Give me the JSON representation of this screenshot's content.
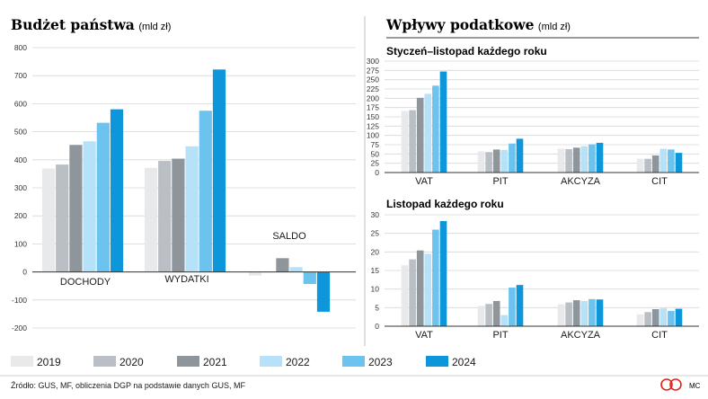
{
  "colors": [
    "#e8e9ea",
    "#b9bfc4",
    "#8f969b",
    "#b5e2f8",
    "#6cc3ee",
    "#0e96db"
  ],
  "legend": [
    "2019",
    "2020",
    "2021",
    "2022",
    "2023",
    "2024"
  ],
  "source": "Źródło: GUS, MF, obliczenia DGP na podstawie danych GUS, MF",
  "credit": "MC",
  "logo_text": "cp",
  "chart_data": [
    {
      "type": "bar",
      "title": "Budżet państwa",
      "unit": "(mld zł)",
      "categories": [
        "DOCHODY",
        "WYDATKI",
        "SALDO"
      ],
      "ylim": [
        -200,
        800
      ],
      "yticks": [
        -200,
        -100,
        0,
        100,
        200,
        300,
        400,
        500,
        600,
        700,
        800
      ],
      "series": [
        {
          "name": "2019",
          "values": [
            369,
            371,
            -13
          ]
        },
        {
          "name": "2020",
          "values": [
            383,
            396,
            1
          ]
        },
        {
          "name": "2021",
          "values": [
            453,
            404,
            49
          ]
        },
        {
          "name": "2022",
          "values": [
            466,
            448,
            17
          ]
        },
        {
          "name": "2023",
          "values": [
            532,
            575,
            -43
          ]
        },
        {
          "name": "2024",
          "values": [
            580,
            722,
            -142
          ]
        }
      ]
    },
    {
      "type": "bar",
      "title": "Wpływy podatkowe",
      "unit": "(mld zł)",
      "subtitle": "Styczeń–listopad każdego roku",
      "categories": [
        "VAT",
        "PIT",
        "AKCYZA",
        "CIT"
      ],
      "ylim": [
        0,
        300
      ],
      "yticks": [
        0,
        25,
        50,
        75,
        100,
        125,
        150,
        175,
        200,
        225,
        250,
        275,
        300
      ],
      "series": [
        {
          "name": "2019",
          "values": [
            166,
            57,
            64,
            37
          ]
        },
        {
          "name": "2020",
          "values": [
            168,
            55,
            63,
            37
          ]
        },
        {
          "name": "2021",
          "values": [
            201,
            62,
            67,
            46
          ]
        },
        {
          "name": "2022",
          "values": [
            212,
            61,
            71,
            64
          ]
        },
        {
          "name": "2023",
          "values": [
            234,
            78,
            76,
            62
          ]
        },
        {
          "name": "2024",
          "values": [
            272,
            91,
            80,
            53
          ]
        }
      ]
    },
    {
      "type": "bar",
      "subtitle": "Listopad każdego roku",
      "categories": [
        "VAT",
        "PIT",
        "AKCYZA",
        "CIT"
      ],
      "ylim": [
        0,
        30
      ],
      "yticks": [
        0,
        5,
        10,
        15,
        20,
        25,
        30
      ],
      "series": [
        {
          "name": "2019",
          "values": [
            16.4,
            5.5,
            5.9,
            3.2
          ]
        },
        {
          "name": "2020",
          "values": [
            18.0,
            6.0,
            6.4,
            3.8
          ]
        },
        {
          "name": "2021",
          "values": [
            20.4,
            6.8,
            7.0,
            4.6
          ]
        },
        {
          "name": "2022",
          "values": [
            19.5,
            3.0,
            6.8,
            4.8
          ]
        },
        {
          "name": "2023",
          "values": [
            26.0,
            10.4,
            7.3,
            4.1
          ]
        },
        {
          "name": "2024",
          "values": [
            28.3,
            11.1,
            7.2,
            4.7
          ]
        }
      ]
    }
  ]
}
